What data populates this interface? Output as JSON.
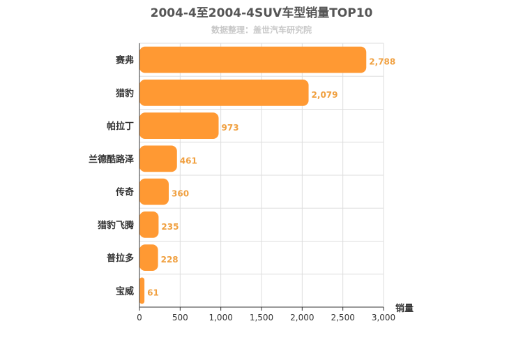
{
  "chart_data": {
    "type": "bar",
    "orientation": "horizontal",
    "title": "2004-4至2004-4SUV车型销量TOP10",
    "subtitle": "数据整理：盖世汽车研究院",
    "xlabel": "销量",
    "ylabel": "",
    "categories": [
      "赛弗",
      "猎豹",
      "帕拉丁",
      "兰德酷路泽",
      "传奇",
      "猎豹飞腾",
      "普拉多",
      "宝威"
    ],
    "values": [
      2788,
      2079,
      973,
      461,
      360,
      235,
      228,
      61
    ],
    "value_labels": [
      "2,788",
      "2,079",
      "973",
      "461",
      "360",
      "235",
      "228",
      "61"
    ],
    "xlim": [
      0,
      3000
    ],
    "ticks": [
      0,
      500,
      1000,
      1500,
      2000,
      2500,
      3000
    ],
    "tick_labels": [
      "0",
      "500",
      "1,000",
      "1,500",
      "2,000",
      "2,500",
      "3,000"
    ],
    "grid": true,
    "legend": "none",
    "colors": {
      "bar": "#ff9933",
      "data_label": "#f0a040",
      "grid": "#dddddd",
      "axis": "#333333"
    }
  }
}
